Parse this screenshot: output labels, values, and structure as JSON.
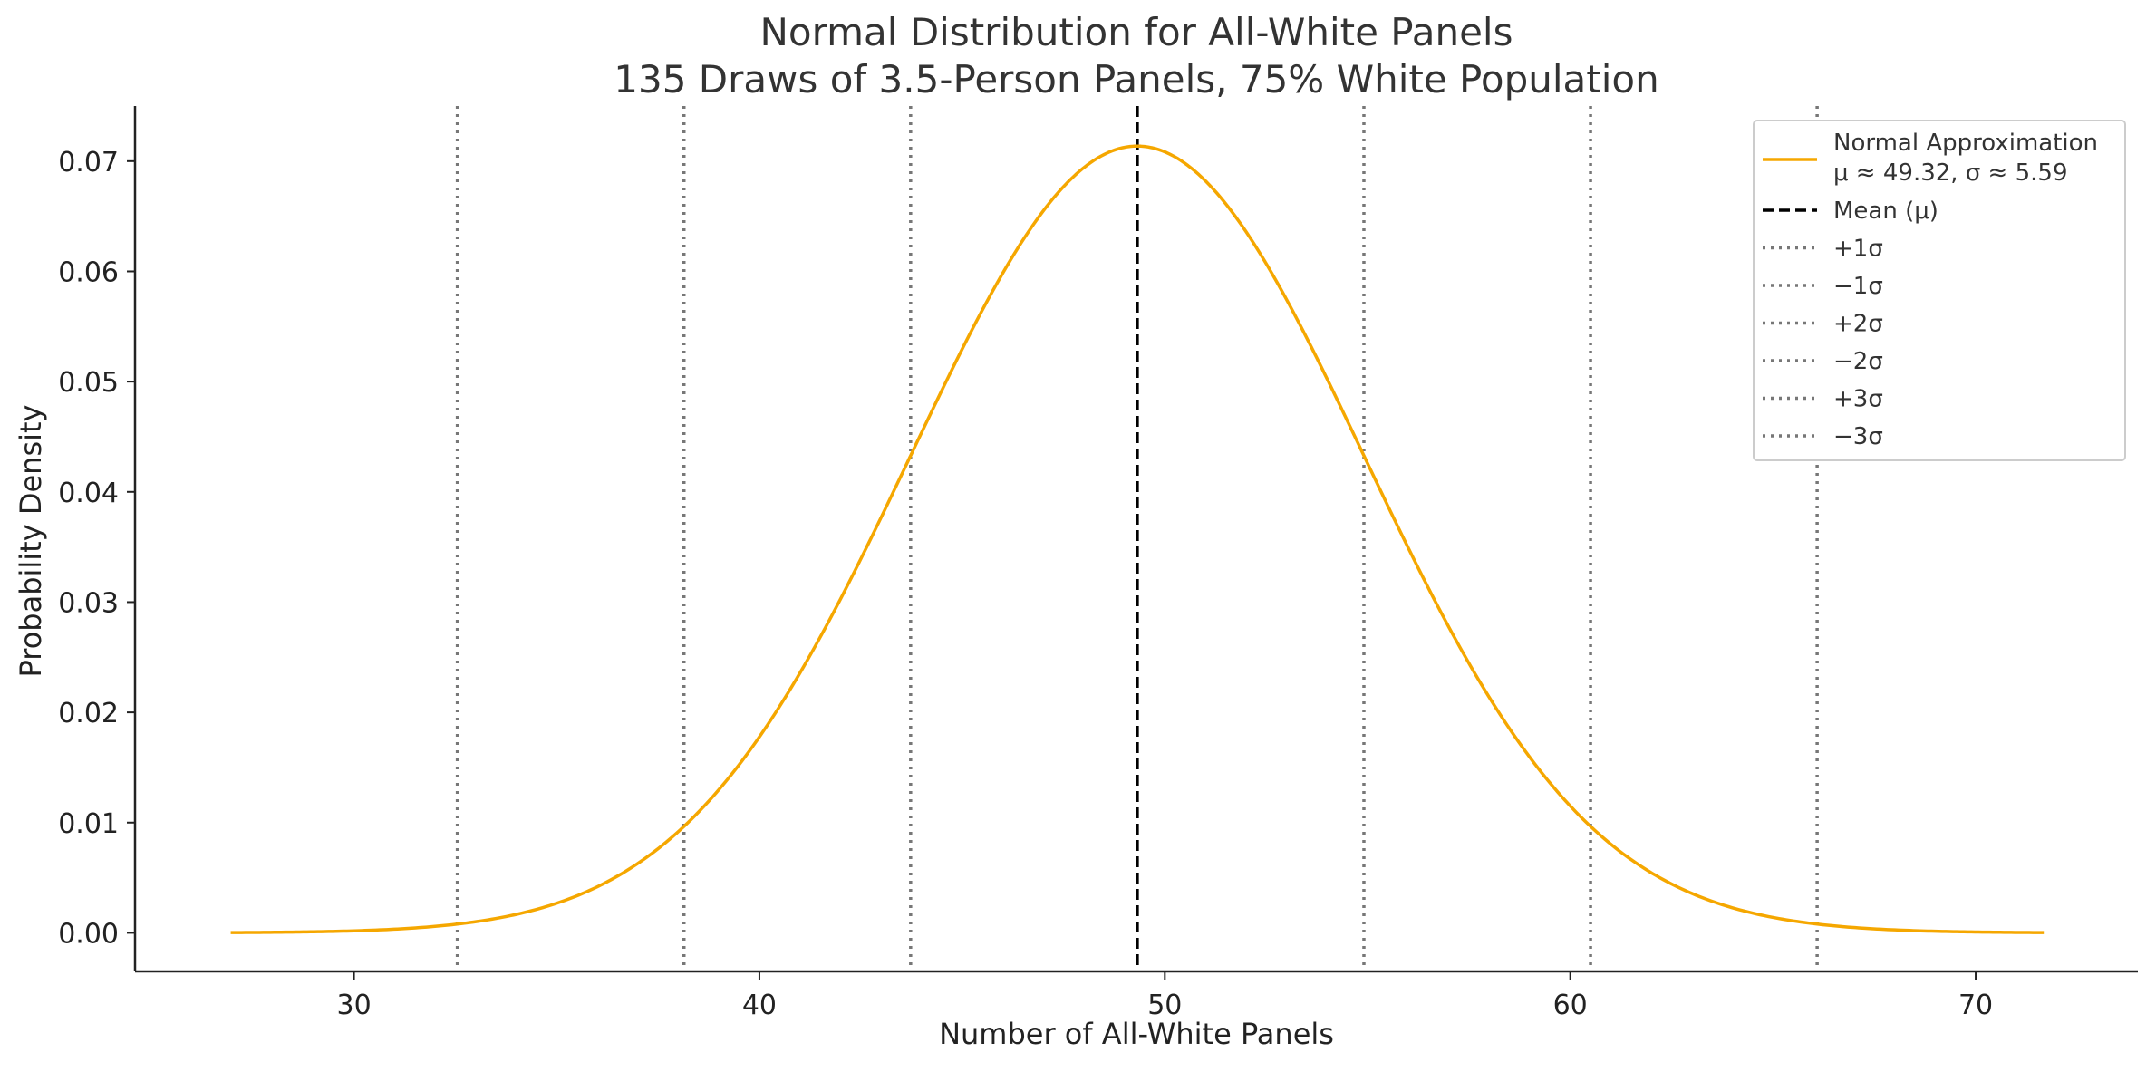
{
  "chart_data": {
    "type": "line",
    "title": "Normal Distribution for All-White Panels",
    "subtitle": "135 Draws of 3.5-Person Panels, 75% White Population",
    "xlabel": "Number of All-White Panels",
    "ylabel": "Probability Density",
    "xlim": [
      24.6,
      74.0
    ],
    "ylim": [
      -0.0035,
      0.075
    ],
    "x_ticks": [
      30,
      40,
      50,
      60,
      70
    ],
    "x_tick_labels": [
      "30",
      "40",
      "50",
      "60",
      "70"
    ],
    "y_ticks": [
      0.0,
      0.01,
      0.02,
      0.03,
      0.04,
      0.05,
      0.06,
      0.07
    ],
    "y_tick_labels": [
      "0.00",
      "0.01",
      "0.02",
      "0.03",
      "0.04",
      "0.05",
      "0.06",
      "0.07"
    ],
    "grid": false,
    "legend_position": "top-right",
    "curve": {
      "name_line1": "Normal Approximation",
      "name_line2": "μ ≈ 49.32, σ ≈ 5.59",
      "mu": 49.32,
      "sigma": 5.59,
      "x_range": [
        26.96,
        71.68
      ],
      "color": "#f5a700"
    },
    "reference_lines": [
      {
        "label": "Mean (μ)",
        "x": 49.32,
        "style": "dashed",
        "color": "#000000"
      },
      {
        "label": "+1σ",
        "x": 54.91,
        "style": "dotted",
        "color": "#777777"
      },
      {
        "label": "−1σ",
        "x": 43.73,
        "style": "dotted",
        "color": "#777777"
      },
      {
        "label": "+2σ",
        "x": 60.5,
        "style": "dotted",
        "color": "#777777"
      },
      {
        "label": "−2σ",
        "x": 38.14,
        "style": "dotted",
        "color": "#777777"
      },
      {
        "label": "+3σ",
        "x": 66.09,
        "style": "dotted",
        "color": "#777777"
      },
      {
        "label": "−3σ",
        "x": 32.55,
        "style": "dotted",
        "color": "#777777"
      }
    ]
  }
}
